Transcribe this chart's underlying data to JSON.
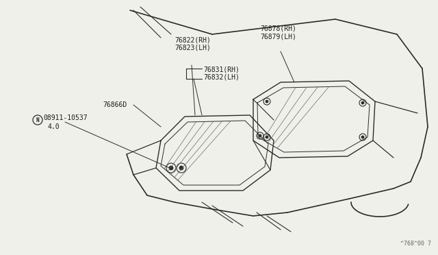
{
  "bg_color": "#f0f0eb",
  "line_color": "#2a2a2a",
  "text_color": "#1a1a1a",
  "watermark": "^768^00 7",
  "label_76822": "76822(RH)\n76823(LH)",
  "label_76831": "76831(RH)\n76832(LH)",
  "label_76878": "76878(RH)\n76879(LH)",
  "label_76866": "76866D",
  "label_N": "(N)08911-10537\n4.0",
  "font_size": 7.0
}
